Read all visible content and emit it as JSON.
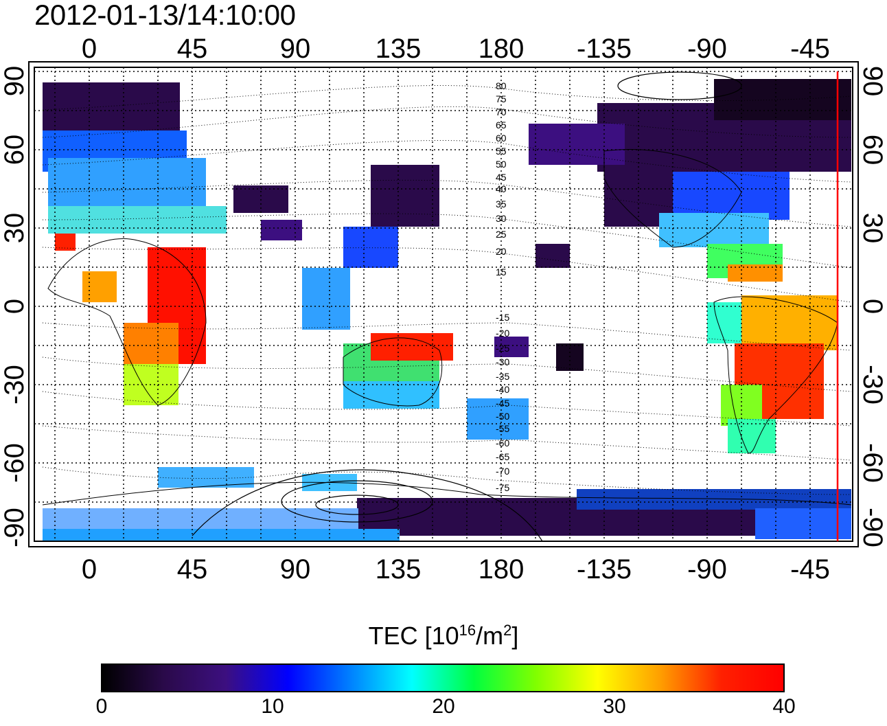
{
  "timestamp": "2012-01-13/14:10:00",
  "longitude_ticks": [
    "0",
    "45",
    "90",
    "135",
    "180",
    "-135",
    "-90",
    "-45"
  ],
  "latitude_ticks": [
    "90",
    "60",
    "30",
    "0",
    "-30",
    "-60",
    "-90"
  ],
  "contour_labels": [
    "80",
    "75",
    "70",
    "65",
    "60",
    "55",
    "50",
    "45",
    "40",
    "35",
    "30",
    "25",
    "20",
    "15",
    "-15",
    "-20",
    "-25",
    "-30",
    "-35",
    "-40",
    "-45",
    "-50",
    "-55",
    "-60",
    "-65",
    "-70",
    "-75"
  ],
  "colorbar": {
    "title_prefix": "TEC  [10",
    "title_exp1": "16",
    "title_mid": "/m",
    "title_exp2": "2",
    "title_suffix": "]",
    "min": 0,
    "max": 40,
    "tick_labels": [
      "0",
      "10",
      "20",
      "30",
      "40"
    ],
    "colors": [
      "#000000",
      "#2a0a4a",
      "#3c0f80",
      "#0000ff",
      "#0080ff",
      "#00ffff",
      "#00ff40",
      "#80ff00",
      "#ffff00",
      "#ffa000",
      "#ff2000",
      "#ff0000"
    ]
  },
  "marker_line_color": "#ff0000"
}
